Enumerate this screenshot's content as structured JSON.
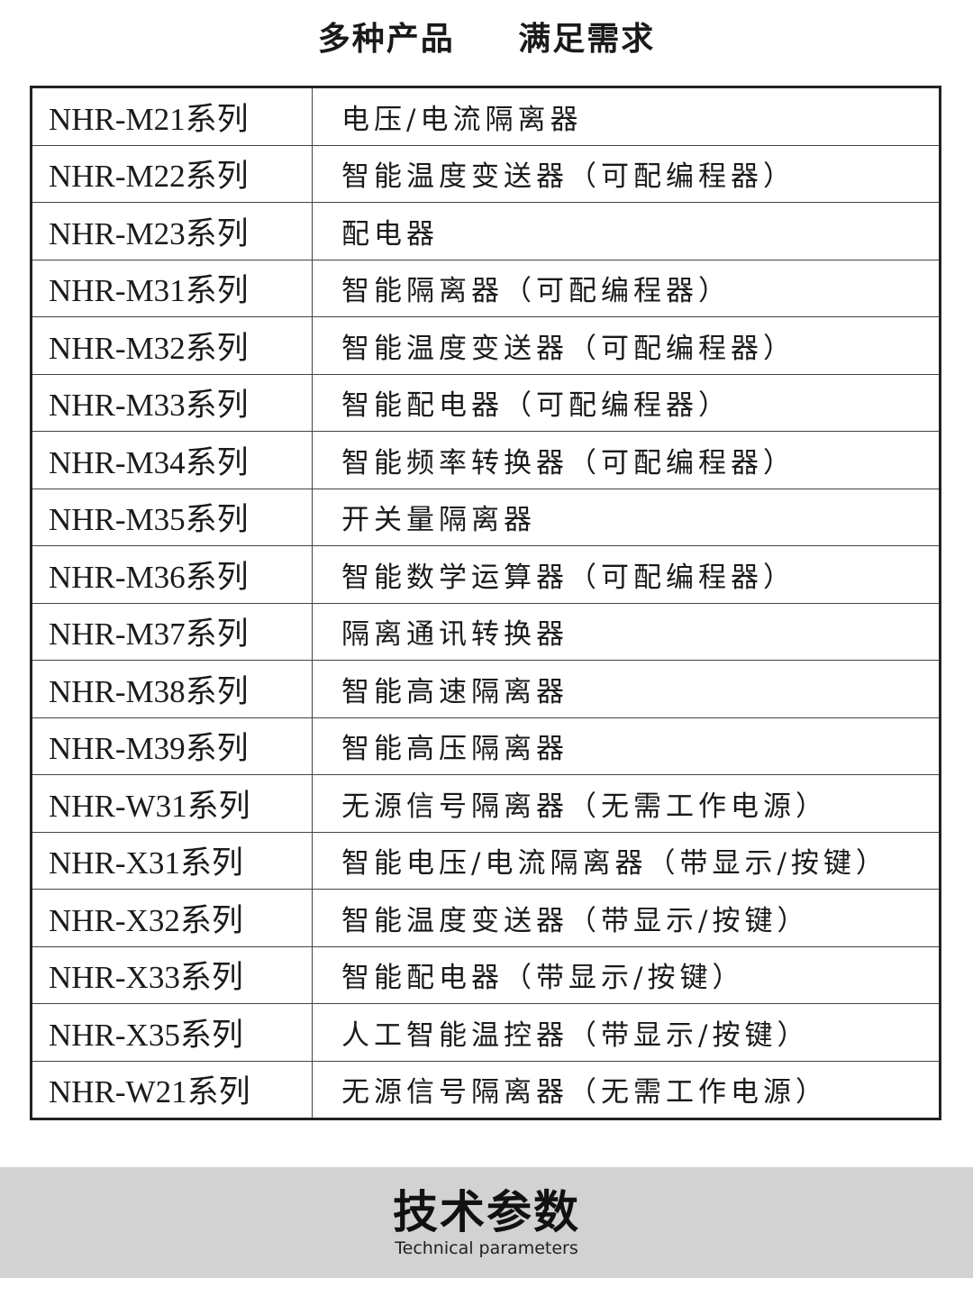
{
  "title": {
    "left": "多种产品",
    "right": "满足需求"
  },
  "rows": [
    {
      "model": "NHR-M21系列",
      "desc": "电压/电流隔离器"
    },
    {
      "model": "NHR-M22系列",
      "desc": "智能温度变送器（可配编程器）"
    },
    {
      "model": "NHR-M23系列",
      "desc": "配电器"
    },
    {
      "model": "NHR-M31系列",
      "desc": "智能隔离器（可配编程器）"
    },
    {
      "model": "NHR-M32系列",
      "desc": "智能温度变送器（可配编程器）"
    },
    {
      "model": "NHR-M33系列",
      "desc": "智能配电器（可配编程器）"
    },
    {
      "model": "NHR-M34系列",
      "desc": "智能频率转换器（可配编程器）"
    },
    {
      "model": "NHR-M35系列",
      "desc": "开关量隔离器"
    },
    {
      "model": "NHR-M36系列",
      "desc": "智能数学运算器（可配编程器）"
    },
    {
      "model": "NHR-M37系列",
      "desc": "隔离通讯转换器"
    },
    {
      "model": "NHR-M38系列",
      "desc": "智能高速隔离器"
    },
    {
      "model": "NHR-M39系列",
      "desc": "智能高压隔离器"
    },
    {
      "model": "NHR-W31系列",
      "desc": "无源信号隔离器（无需工作电源）"
    },
    {
      "model": "NHR-X31系列",
      "desc": "智能电压/电流隔离器（带显示/按键）"
    },
    {
      "model": "NHR-X32系列",
      "desc": "智能温度变送器（带显示/按键）"
    },
    {
      "model": "NHR-X33系列",
      "desc": "智能配电器（带显示/按键）"
    },
    {
      "model": "NHR-X35系列",
      "desc": "人工智能温控器（带显示/按键）"
    },
    {
      "model": "NHR-W21系列",
      "desc": "无源信号隔离器（无需工作电源）"
    }
  ],
  "banner": {
    "heading": "技术参数",
    "subheading": "Technical parameters",
    "background": "#d3d2d3"
  }
}
